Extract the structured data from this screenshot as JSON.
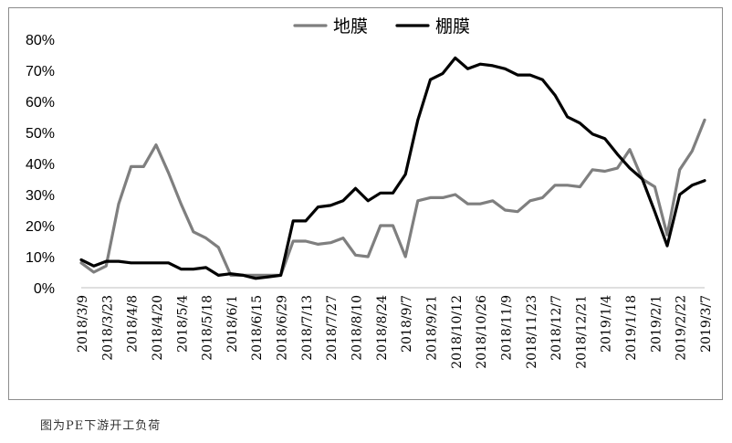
{
  "caption": "图为PE下游开工负荷",
  "chart_data": {
    "type": "line",
    "legend_position": "top-center",
    "grid": false,
    "ylim": [
      0,
      0.8
    ],
    "yticks": [
      "0%",
      "10%",
      "20%",
      "30%",
      "40%",
      "50%",
      "60%",
      "70%",
      "80%"
    ],
    "xtick_labels": [
      "2018/3/9",
      "2018/3/23",
      "2018/4/8",
      "2018/4/20",
      "2018/5/4",
      "2018/5/18",
      "2018/6/1",
      "2018/6/15",
      "2018/6/29",
      "2018/7/13",
      "2018/7/27",
      "2018/8/10",
      "2018/8/24",
      "2018/9/7",
      "2018/9/21",
      "2018/10/12",
      "2018/10/26",
      "2018/11/9",
      "2018/11/23",
      "2018/12/7",
      "2018/12/21",
      "2019/1/4",
      "2019/1/18",
      "2019/2/1",
      "2019/2/22",
      "2019/3/7"
    ],
    "x": [
      "2018/3/9",
      "2018/3/16",
      "2018/3/23",
      "2018/3/30",
      "2018/4/8",
      "2018/4/13",
      "2018/4/20",
      "2018/4/27",
      "2018/5/4",
      "2018/5/11",
      "2018/5/18",
      "2018/5/25",
      "2018/6/1",
      "2018/6/8",
      "2018/6/15",
      "2018/6/22",
      "2018/6/29",
      "2018/7/6",
      "2018/7/13",
      "2018/7/20",
      "2018/7/27",
      "2018/8/3",
      "2018/8/10",
      "2018/8/17",
      "2018/8/24",
      "2018/8/31",
      "2018/9/7",
      "2018/9/14",
      "2018/9/21",
      "2018/9/28",
      "2018/10/12",
      "2018/10/19",
      "2018/10/26",
      "2018/11/2",
      "2018/11/9",
      "2018/11/16",
      "2018/11/23",
      "2018/11/30",
      "2018/12/7",
      "2018/12/14",
      "2018/12/21",
      "2018/12/28",
      "2019/1/4",
      "2019/1/11",
      "2019/1/18",
      "2019/1/25",
      "2019/2/1",
      "2019/2/15",
      "2019/2/22",
      "2019/3/1",
      "2019/3/7"
    ],
    "series": [
      {
        "name": "地膜",
        "color": "#7f7f7f",
        "values": [
          0.08,
          0.05,
          0.07,
          0.27,
          0.39,
          0.39,
          0.46,
          0.37,
          0.27,
          0.18,
          0.16,
          0.13,
          0.04,
          0.04,
          0.04,
          0.04,
          0.04,
          0.15,
          0.15,
          0.14,
          0.145,
          0.16,
          0.105,
          0.1,
          0.2,
          0.2,
          0.1,
          0.28,
          0.29,
          0.29,
          0.3,
          0.27,
          0.27,
          0.28,
          0.25,
          0.245,
          0.28,
          0.29,
          0.33,
          0.33,
          0.325,
          0.38,
          0.375,
          0.385,
          0.445,
          0.35,
          0.325,
          0.17,
          0.38,
          0.44,
          0.54
        ]
      },
      {
        "name": "棚膜",
        "color": "#000000",
        "values": [
          0.09,
          0.07,
          0.085,
          0.085,
          0.08,
          0.08,
          0.08,
          0.08,
          0.06,
          0.06,
          0.065,
          0.04,
          0.045,
          0.04,
          0.03,
          0.035,
          0.04,
          0.215,
          0.215,
          0.26,
          0.265,
          0.28,
          0.32,
          0.28,
          0.305,
          0.305,
          0.365,
          0.54,
          0.67,
          0.69,
          0.74,
          0.705,
          0.72,
          0.715,
          0.705,
          0.685,
          0.685,
          0.67,
          0.62,
          0.55,
          0.53,
          0.495,
          0.48,
          0.43,
          0.385,
          0.35,
          0.245,
          0.135,
          0.3,
          0.33,
          0.345
        ]
      }
    ]
  }
}
